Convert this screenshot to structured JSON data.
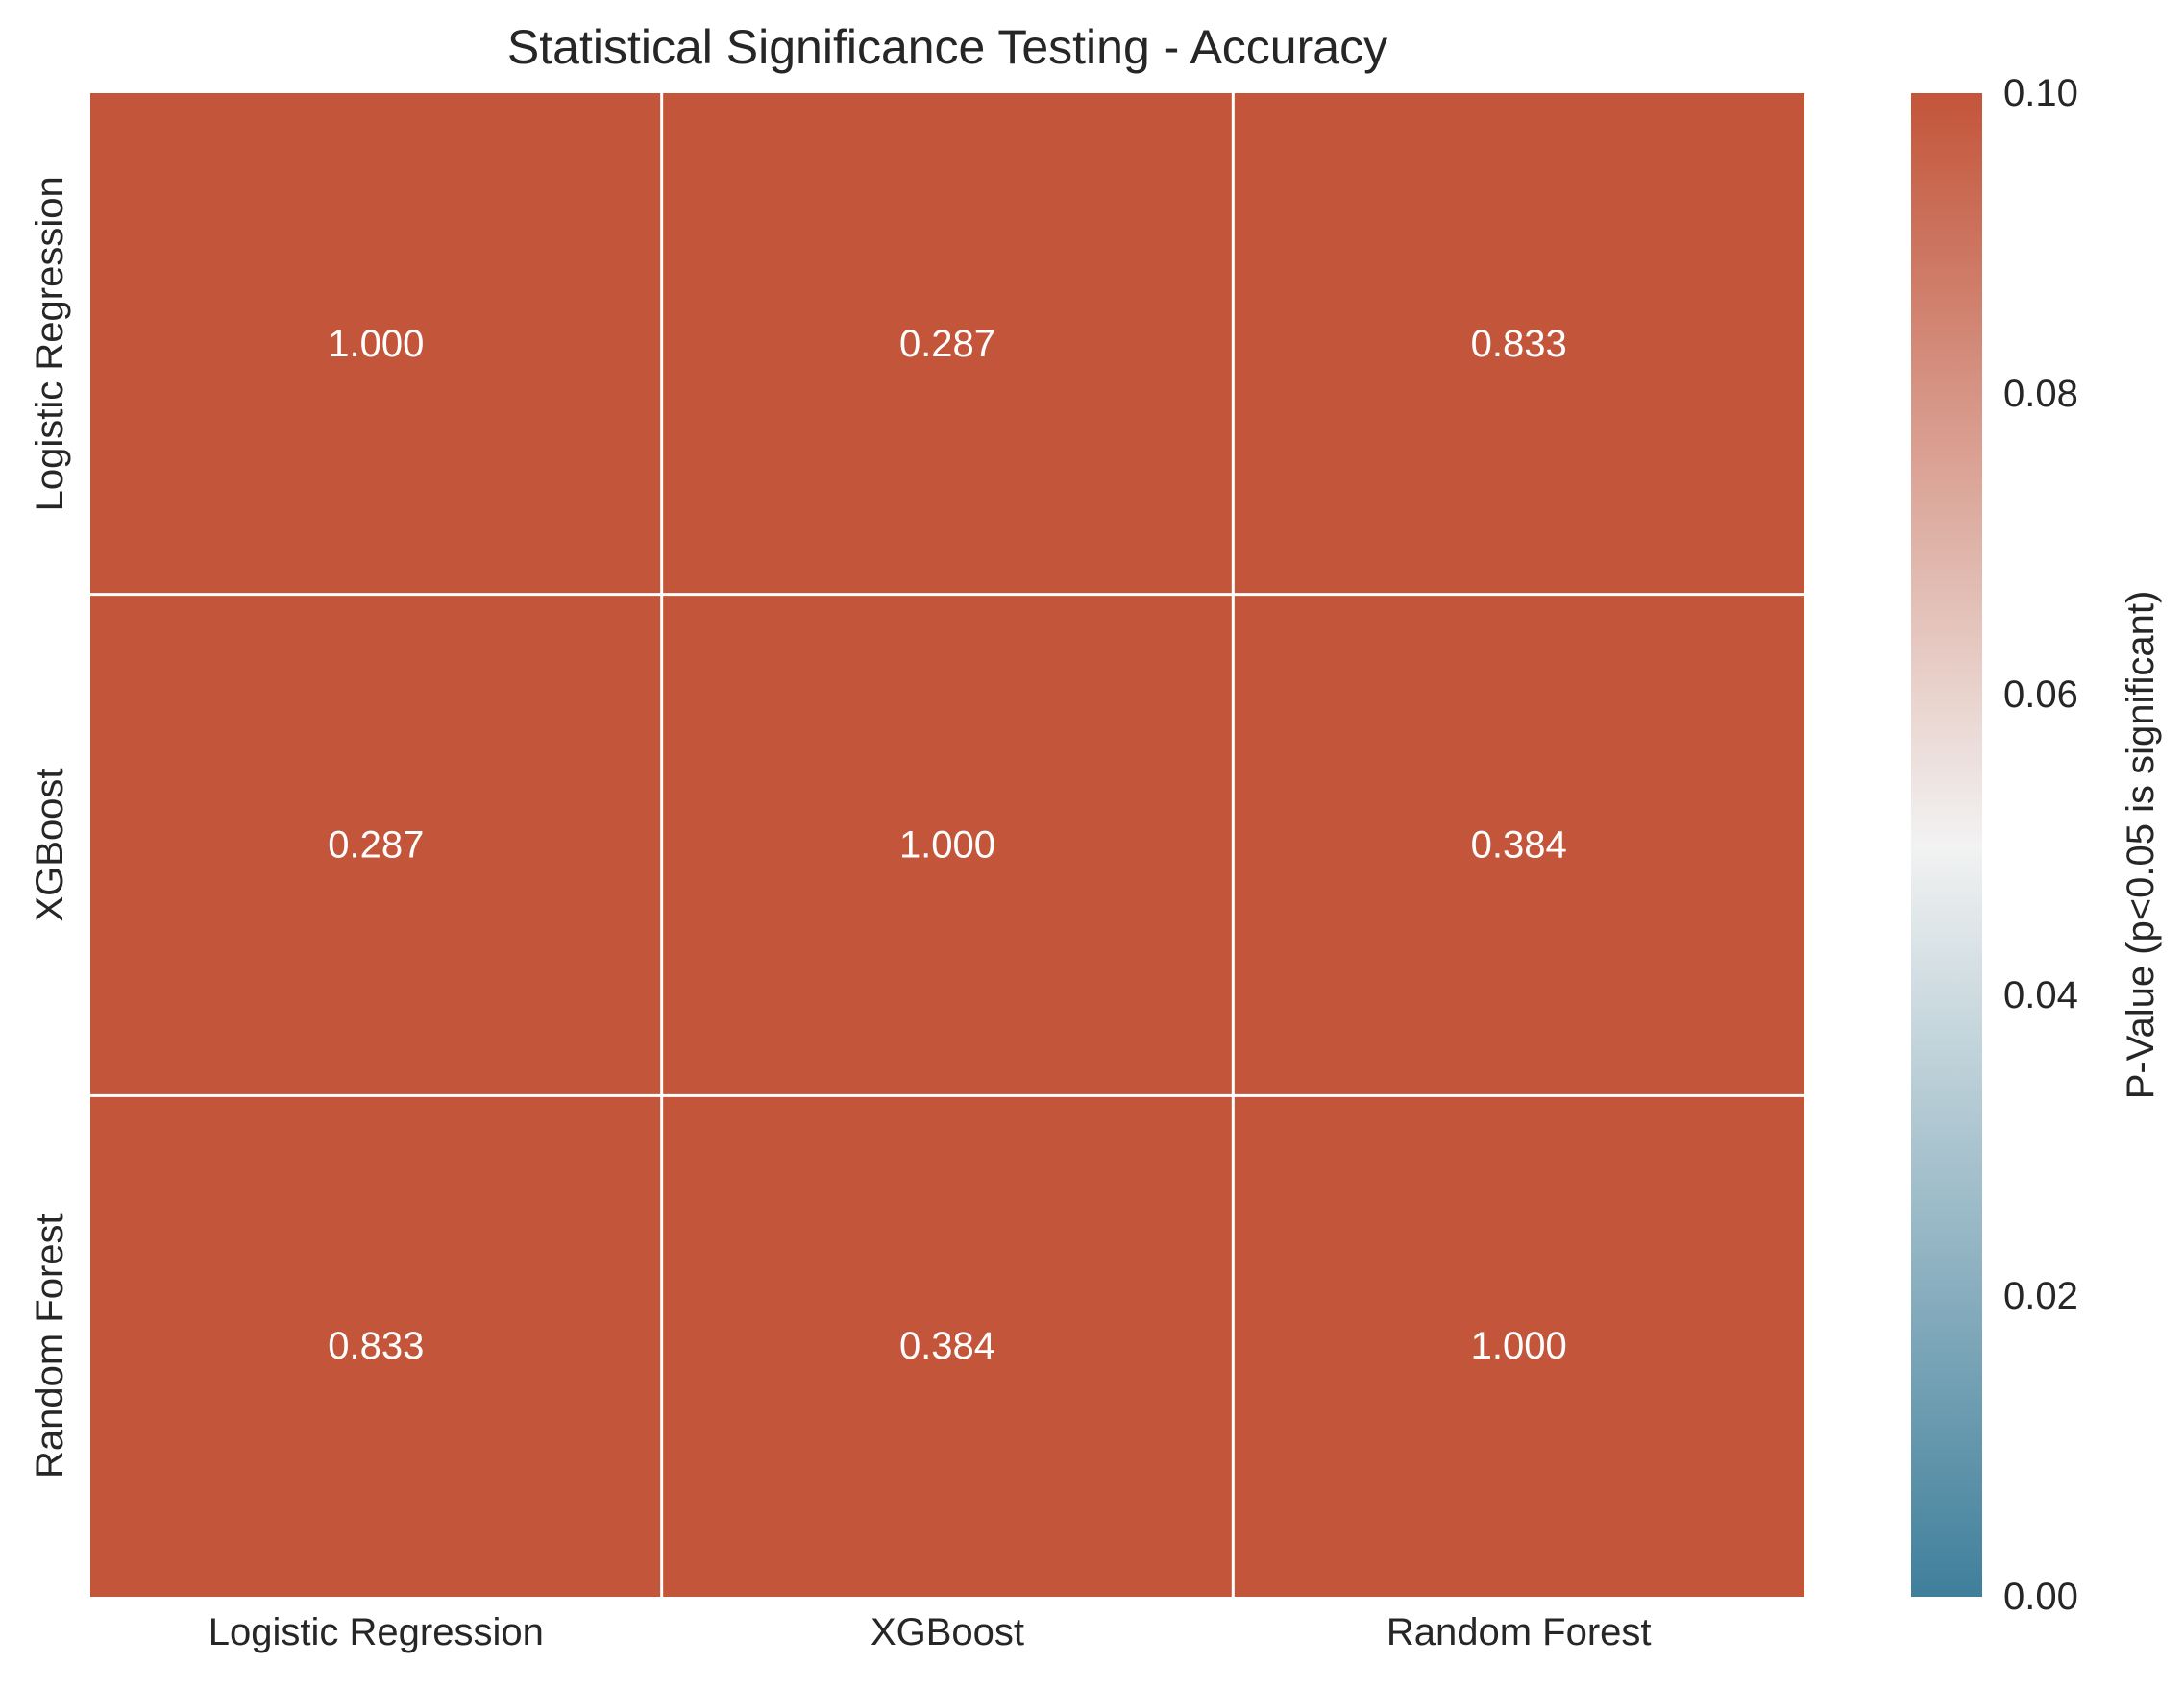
{
  "chart_data": {
    "type": "heatmap",
    "title": "Statistical Significance Testing - Accuracy",
    "xlabel": "",
    "ylabel": "",
    "x_categories": [
      "Logistic Regression",
      "XGBoost",
      "Random Forest"
    ],
    "y_categories": [
      "Logistic Regression",
      "XGBoost",
      "Random Forest"
    ],
    "values": [
      [
        1.0,
        0.287,
        0.833
      ],
      [
        0.287,
        1.0,
        0.384
      ],
      [
        0.833,
        0.384,
        1.0
      ]
    ],
    "cell_labels": [
      [
        "1.000",
        "0.287",
        "0.833"
      ],
      [
        "0.287",
        "1.000",
        "0.384"
      ],
      [
        "0.833",
        "0.384",
        "1.000"
      ]
    ],
    "colorbar": {
      "label": "P-Value (p<0.05 is significant)",
      "range": [
        0.0,
        0.1
      ],
      "ticks": [
        "0.00",
        "0.02",
        "0.04",
        "0.06",
        "0.08",
        "0.10"
      ],
      "colormap": "diverging blue-white-red",
      "colors": {
        "low": "#3f7f9b",
        "mid": "#f2f2f2",
        "high": "#c3553a"
      }
    },
    "grid_line_color": "#ffffff",
    "annotation_color": "#ffffff"
  }
}
